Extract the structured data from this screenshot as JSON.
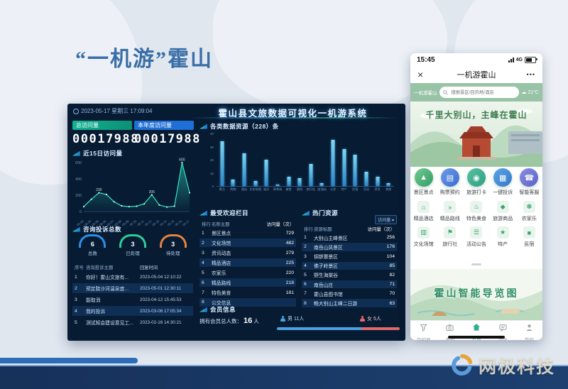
{
  "slide": {
    "title": "“一机游”霍山"
  },
  "watermark": {
    "text": "网极科技"
  },
  "dashboard": {
    "header": {
      "date": "2023-05-17 星期三 17:09:04",
      "title": "霍山县文旅数据可视化一机游系统"
    },
    "stats": [
      {
        "label": "总访问量",
        "value": "00017988",
        "color": "#10ae8f"
      },
      {
        "label": "本年度访问量",
        "value": "00017988",
        "color": "#1e6fd6"
      }
    ],
    "visits_chart": {
      "type": "area",
      "title": "近15日访问量",
      "x": [
        "05-03",
        "05-04",
        "05-05",
        "05-06",
        "05-07",
        "05-08",
        "05-09",
        "05-10",
        "05-11",
        "05-12",
        "05-13",
        "05-14",
        "05-15",
        "05-16",
        "05-17"
      ],
      "values": [
        60,
        150,
        230,
        210,
        120,
        70,
        60,
        65,
        95,
        205,
        80,
        55,
        65,
        600,
        230
      ],
      "ylim": [
        0,
        600
      ],
      "yticks": [
        0,
        200,
        400,
        600
      ],
      "line_color": "#35e2c2"
    },
    "complaints": {
      "title": "咨询投诉总数",
      "gauges": [
        {
          "value": "6",
          "label": "总数",
          "color": "#2e8fe8"
        },
        {
          "value": "3",
          "label": "已处理",
          "color": "#2ecf96"
        },
        {
          "value": "3",
          "label": "待处理",
          "color": "#e8823c"
        }
      ],
      "headers": [
        "序号",
        "咨询投诉主题",
        "回复时间"
      ],
      "rows": [
        [
          "1",
          "你好！霍山文旅有...",
          "2023-05-04 12:10:22"
        ],
        [
          "2",
          "预定陡沙河温泉度...",
          "2023-05-01 12:30:11"
        ],
        [
          "3",
          "能取消",
          "2023-04-12 15:45:53"
        ],
        [
          "4",
          "我的投诉",
          "2023-03-06 17:05:34"
        ],
        [
          "5",
          "测试知会建设意见工...",
          "2023-02-16 14:30:21"
        ]
      ]
    },
    "resources_chart": {
      "type": "bar",
      "title": "各类数据资源（228）条",
      "categories": [
        "景点",
        "购物",
        "酒店",
        "文化场馆",
        "娱乐",
        "停车场",
        "美食",
        "厕所",
        "旅行社",
        "加油站",
        "公交",
        "特产",
        "民宿",
        "活动",
        "资讯",
        "其他"
      ],
      "values": [
        34,
        5,
        25,
        4,
        20,
        1,
        7,
        6,
        17,
        2,
        35,
        28,
        24,
        11,
        7,
        2
      ],
      "ylim": [
        0,
        40
      ],
      "yticks": [
        0,
        10,
        20,
        30,
        40
      ],
      "bar_color": "#4ab4e8"
    },
    "popular": {
      "title": "最受欢迎栏目",
      "headers": [
        "排行",
        "名称主题",
        "访问量（次）"
      ],
      "rows": [
        [
          "1",
          "景区景点",
          "729"
        ],
        [
          "2",
          "文化场馆",
          "482"
        ],
        [
          "3",
          "资讯动态",
          "279"
        ],
        [
          "4",
          "精品酒店",
          "225"
        ],
        [
          "5",
          "农家乐",
          "220"
        ],
        [
          "6",
          "精品路线",
          "218"
        ],
        [
          "7",
          "特色美食",
          "181"
        ],
        [
          "8",
          "公交信息",
          ""
        ]
      ]
    },
    "hot": {
      "title": "热门资源",
      "sort_label": "访问量",
      "headers": [
        "排行",
        "资源标题",
        "访问量（次）"
      ],
      "rows": [
        [
          "1",
          "大别山主峰景区",
          "256"
        ],
        [
          "2",
          "南岳山风景区",
          "176"
        ],
        [
          "3",
          "铜锣寨景区",
          "104"
        ],
        [
          "4",
          "佛子岭景区",
          "85"
        ],
        [
          "5",
          "野生海棠谷",
          "82"
        ],
        [
          "6",
          "南岳山庄",
          "71"
        ],
        [
          "7",
          "霍山县图书馆",
          "70"
        ],
        [
          "8",
          "畅大别山主峰二日游",
          "63"
        ]
      ]
    },
    "members": {
      "title": "会员信息",
      "total_label": "拥有会员总人数：",
      "total_value": "16",
      "total_unit": "人",
      "male": 11,
      "female": 5,
      "male_label": "男 11人",
      "female_label": "女 5人",
      "male_color": "#4aa3e0",
      "female_color": "#e06a6a"
    }
  },
  "phone": {
    "status": {
      "time": "15:45",
      "network": "4G"
    },
    "nav": {
      "close": "×",
      "title": "一机游霍山",
      "more": "•••"
    },
    "header": {
      "app_tag": "一机游霍山",
      "search_placeholder": "搜索景区/目的地/酒店",
      "weather": "☁ 21°C"
    },
    "banner": {
      "slogan": "千里大别山，主峰在霍山"
    },
    "grid": {
      "row1": [
        {
          "label": "景区景点",
          "icon": "scenic-spot-icon",
          "glyph": "▲",
          "bg": "linear-gradient(135deg,#74c98f,#2f9e68)"
        },
        {
          "label": "购票预约",
          "icon": "ticket-booking-icon",
          "glyph": "▤",
          "bg": "linear-gradient(135deg,#6e9ae8,#3a6fd0)"
        },
        {
          "label": "旅游打卡",
          "icon": "travel-checkin-icon",
          "glyph": "◉",
          "bg": "linear-gradient(135deg,#58c2a2,#2f9e80)"
        },
        {
          "label": "一键投诉",
          "icon": "complaint-icon",
          "glyph": "▦",
          "bg": "linear-gradient(135deg,#5aa6e8,#3576c8)"
        },
        {
          "label": "智能客服",
          "icon": "smart-service-icon",
          "glyph": "☎",
          "bg": "linear-gradient(135deg,#8a8fe0,#5a62c8)"
        }
      ],
      "row2": [
        {
          "label": "精品酒店",
          "icon": "hotel-icon",
          "glyph": "⌂"
        },
        {
          "label": "精品路线",
          "icon": "route-icon",
          "glyph": "»"
        },
        {
          "label": "特色美食",
          "icon": "food-icon",
          "glyph": "♨"
        },
        {
          "label": "旅游商品",
          "icon": "goods-icon",
          "glyph": "◆"
        },
        {
          "label": "农家乐",
          "icon": "farmstay-icon",
          "glyph": "✽"
        }
      ],
      "row3": [
        {
          "label": "文化场馆",
          "icon": "culture-venue-icon",
          "glyph": "▥"
        },
        {
          "label": "旅行社",
          "icon": "travel-agency-icon",
          "glyph": "⚑"
        },
        {
          "label": "活动公告",
          "icon": "notice-icon",
          "glyph": "☰"
        },
        {
          "label": "特产",
          "icon": "specialty-icon",
          "glyph": "★"
        },
        {
          "label": "民宿",
          "icon": "homestay-icon",
          "glyph": "■"
        }
      ]
    },
    "map_section": {
      "title": "霍山智能导览图"
    },
    "tabbar": [
      {
        "label": "目的地"
      },
      {
        "label": "发现"
      },
      {
        "label": "首页",
        "active": true
      },
      {
        "label": "资讯"
      },
      {
        "label": "我的"
      }
    ]
  }
}
